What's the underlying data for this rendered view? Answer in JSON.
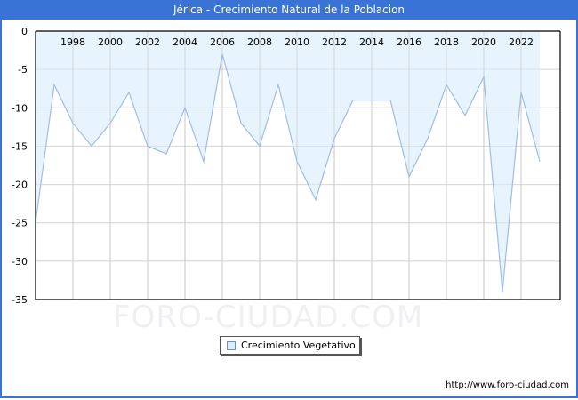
{
  "header": {
    "title": "Jérica - Crecimiento Natural de la Poblacion"
  },
  "watermark": "FORO-CIUDAD.COM",
  "footer": {
    "url": "http://www.foro-ciudad.com"
  },
  "legend": {
    "label": "Crecimiento Vegetativo"
  },
  "colors": {
    "titlebar": "#3a73d6",
    "fill": "#e3f1fd",
    "line": "#9fbde8",
    "grid": "#d8d8d8"
  },
  "chart_data": {
    "type": "area",
    "title": "Jérica - Crecimiento Natural de la Poblacion",
    "xlabel": "",
    "ylabel": "",
    "x": [
      1996,
      1997,
      1998,
      1999,
      2000,
      2001,
      2002,
      2003,
      2004,
      2005,
      2006,
      2007,
      2008,
      2009,
      2010,
      2011,
      2012,
      2013,
      2014,
      2015,
      2016,
      2017,
      2018,
      2019,
      2020,
      2021,
      2022,
      2023
    ],
    "series": [
      {
        "name": "Crecimiento Vegetativo",
        "values": [
          -25,
          -7,
          -12,
          -15,
          -12,
          -8,
          -15,
          -16,
          -10,
          -17,
          -3,
          -12,
          -15,
          -7,
          -17,
          -22,
          -14,
          -9,
          -9,
          -9,
          -19,
          -14,
          -7,
          -11,
          -6,
          -34,
          -8,
          -17
        ]
      }
    ],
    "x_tick_labels": [
      "1998",
      "2000",
      "2002",
      "2004",
      "2006",
      "2008",
      "2010",
      "2012",
      "2014",
      "2016",
      "2018",
      "2020",
      "2022"
    ],
    "y_tick_labels": [
      "0",
      "-5",
      "-10",
      "-15",
      "-20",
      "-25",
      "-30",
      "-35"
    ],
    "ylim": [
      -35,
      0
    ],
    "grid": true,
    "legend_position": "bottom-center"
  }
}
